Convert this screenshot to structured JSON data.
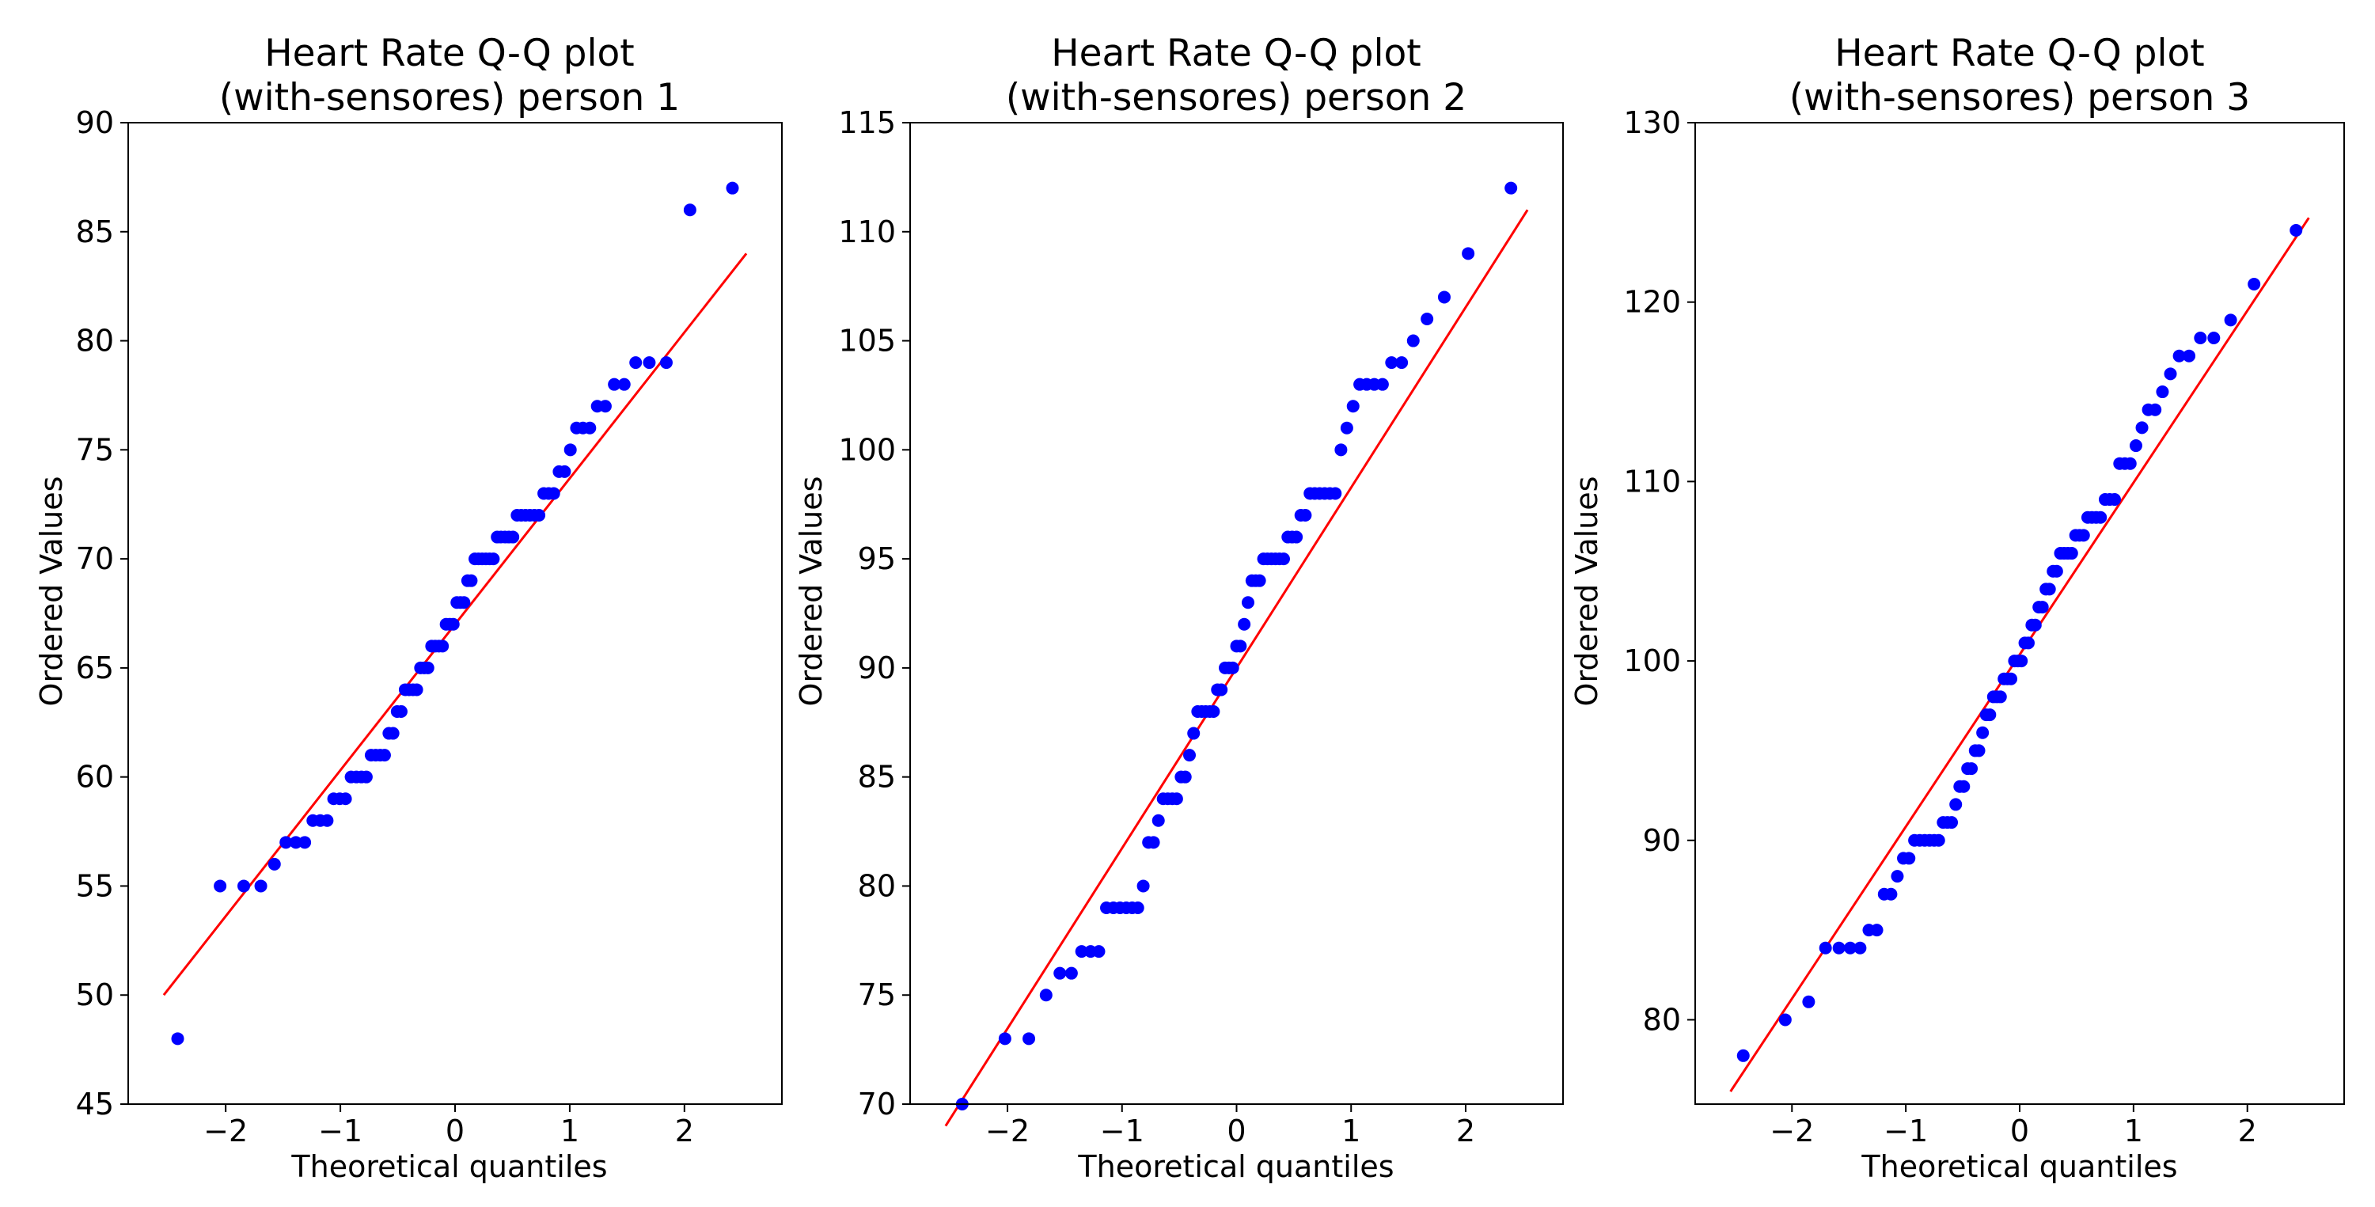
{
  "chart_data": [
    {
      "type": "scatter",
      "title": [
        "Heart Rate Q-Q plot",
        "(with-sensores) person 1"
      ],
      "xlabel": "Theoretical quantiles",
      "ylabel": "Ordered Values",
      "xlim": [
        -2.85,
        2.85
      ],
      "ylim": [
        45,
        90
      ],
      "xticks": [
        -2,
        -1,
        0,
        1,
        2
      ],
      "xtick_labels": [
        "−2",
        "−1",
        "0",
        "1",
        "2"
      ],
      "yticks": [
        45,
        50,
        55,
        60,
        65,
        70,
        75,
        80,
        85,
        90
      ],
      "ytick_labels": [
        "45",
        "50",
        "55",
        "60",
        "65",
        "70",
        "75",
        "80",
        "85",
        "90"
      ],
      "series": [
        {
          "name": "ordered values",
          "marker_color": "#0000ff",
          "y": [
            48,
            55,
            55,
            55,
            56,
            57,
            57,
            57,
            58,
            58,
            58,
            59,
            59,
            59,
            60,
            60,
            60,
            60,
            61,
            61,
            61,
            61,
            62,
            62,
            63,
            63,
            64,
            64,
            64,
            64,
            65,
            65,
            65,
            66,
            66,
            66,
            66,
            67,
            67,
            67,
            68,
            68,
            68,
            69,
            69,
            70,
            70,
            70,
            70,
            70,
            70,
            71,
            71,
            71,
            71,
            71,
            72,
            72,
            72,
            72,
            72,
            72,
            73,
            73,
            73,
            74,
            74,
            75,
            76,
            76,
            76,
            77,
            77,
            78,
            78,
            79,
            79,
            79,
            86,
            87
          ]
        }
      ],
      "fit_line": {
        "color": "#ff0000",
        "x": [
          -2.54,
          2.54
        ],
        "y": [
          50.0,
          84.0
        ]
      }
    },
    {
      "type": "scatter",
      "title": [
        "Heart Rate Q-Q plot",
        "(with-sensores) person 2"
      ],
      "xlabel": "Theoretical quantiles",
      "ylabel": "Ordered Values",
      "xlim": [
        -2.85,
        2.85
      ],
      "ylim": [
        70,
        115
      ],
      "xticks": [
        -2,
        -1,
        0,
        1,
        2
      ],
      "xtick_labels": [
        "−2",
        "−1",
        "0",
        "1",
        "2"
      ],
      "yticks": [
        70,
        75,
        80,
        85,
        90,
        95,
        100,
        105,
        110,
        115
      ],
      "ytick_labels": [
        "70",
        "75",
        "80",
        "85",
        "90",
        "95",
        "100",
        "105",
        "110",
        "115"
      ],
      "series": [
        {
          "name": "ordered values",
          "marker_color": "#0000ff",
          "y": [
            70,
            73,
            73,
            75,
            76,
            76,
            77,
            77,
            77,
            79,
            79,
            79,
            79,
            79,
            79,
            80,
            82,
            82,
            83,
            84,
            84,
            84,
            84,
            85,
            85,
            86,
            87,
            88,
            88,
            88,
            88,
            88,
            89,
            89,
            90,
            90,
            90,
            91,
            91,
            92,
            93,
            94,
            94,
            94,
            95,
            95,
            95,
            95,
            95,
            95,
            96,
            96,
            96,
            97,
            97,
            98,
            98,
            98,
            98,
            98,
            98,
            100,
            101,
            102,
            103,
            103,
            103,
            103,
            104,
            104,
            105,
            106,
            107,
            109,
            112
          ]
        }
      ],
      "fit_line": {
        "color": "#ff0000",
        "x": [
          -2.54,
          2.54
        ],
        "y": [
          69.0,
          111.0
        ]
      }
    },
    {
      "type": "scatter",
      "title": [
        "Heart Rate Q-Q plot",
        "(with-sensores) person 3"
      ],
      "xlabel": "Theoretical quantiles",
      "ylabel": "Ordered Values",
      "xlim": [
        -2.85,
        2.85
      ],
      "ylim": [
        75.3,
        130
      ],
      "xticks": [
        -2,
        -1,
        0,
        1,
        2
      ],
      "xtick_labels": [
        "−2",
        "−1",
        "0",
        "1",
        "2"
      ],
      "yticks": [
        80,
        90,
        100,
        110,
        120,
        130
      ],
      "ytick_labels": [
        "80",
        "90",
        "100",
        "110",
        "120",
        "130"
      ],
      "series": [
        {
          "name": "ordered values",
          "marker_color": "#0000ff",
          "y": [
            78,
            80,
            81,
            84,
            84,
            84,
            84,
            85,
            85,
            87,
            87,
            88,
            89,
            89,
            90,
            90,
            90,
            90,
            90,
            90,
            91,
            91,
            91,
            92,
            93,
            93,
            94,
            94,
            95,
            95,
            96,
            97,
            97,
            98,
            98,
            98,
            99,
            99,
            99,
            100,
            100,
            100,
            101,
            101,
            102,
            102,
            103,
            103,
            104,
            104,
            105,
            105,
            106,
            106,
            106,
            106,
            107,
            107,
            107,
            108,
            108,
            108,
            108,
            109,
            109,
            109,
            111,
            111,
            111,
            112,
            113,
            114,
            114,
            115,
            116,
            117,
            117,
            118,
            118,
            119,
            121,
            124
          ]
        }
      ],
      "fit_line": {
        "color": "#ff0000",
        "x": [
          -2.54,
          2.54
        ],
        "y": [
          76.0,
          124.7
        ]
      }
    }
  ]
}
